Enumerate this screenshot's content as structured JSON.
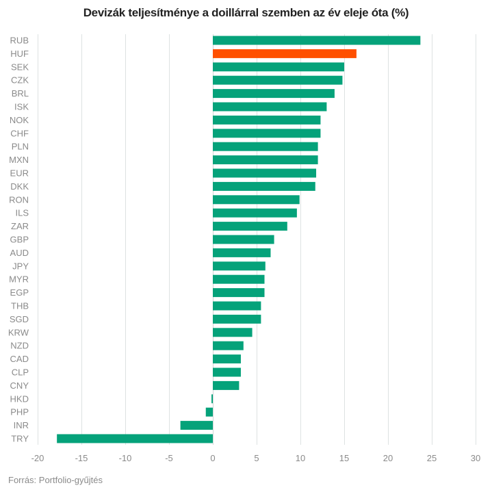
{
  "chart_data": {
    "type": "bar",
    "orientation": "horizontal",
    "title": "Devizák teljesítménye a doillárral szemben az év eleje óta (%)",
    "xlabel": "",
    "ylabel": "",
    "xlim": [
      -20,
      30
    ],
    "xticks": [
      -20,
      -15,
      -10,
      -5,
      0,
      5,
      10,
      15,
      20,
      25,
      30
    ],
    "grid": "vertical",
    "legend": "none",
    "categories": [
      "RUB",
      "HUF",
      "SEK",
      "CZK",
      "BRL",
      "ISK",
      "NOK",
      "CHF",
      "PLN",
      "MXN",
      "EUR",
      "DKK",
      "RON",
      "ILS",
      "ZAR",
      "GBP",
      "AUD",
      "JPY",
      "MYR",
      "EGP",
      "THB",
      "SGD",
      "KRW",
      "NZD",
      "CAD",
      "CLP",
      "CNY",
      "HKD",
      "PHP",
      "INR",
      "TRY"
    ],
    "values": [
      23.7,
      16.4,
      15.0,
      14.8,
      13.9,
      13.0,
      12.3,
      12.3,
      12.0,
      12.0,
      11.8,
      11.7,
      9.9,
      9.6,
      8.5,
      7.0,
      6.6,
      6.0,
      5.9,
      5.9,
      5.5,
      5.5,
      4.5,
      3.5,
      3.2,
      3.2,
      3.0,
      -0.15,
      -0.8,
      -3.7,
      -17.8
    ],
    "highlight": "HUF",
    "colors": {
      "default": "#05a27a",
      "highlight": "#ff5000",
      "grid": "#dde2e2",
      "zero_line": "#cfd6d6"
    },
    "source": "Forrás: Portfolio-gyűjtés"
  }
}
